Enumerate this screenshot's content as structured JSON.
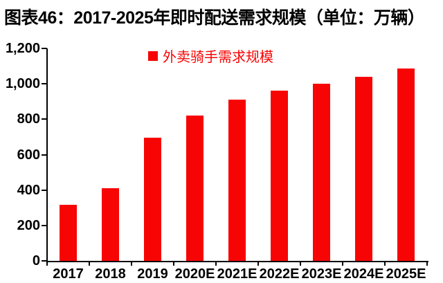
{
  "title": "图表46：2017-2025年即时配送需求规模（单位：万辆）",
  "legend": {
    "label": "外卖骑手需求规模"
  },
  "colors": {
    "bar": "#f70505",
    "legend_text": "#f70505",
    "axis": "#000000",
    "title_text": "#000000",
    "background": "#ffffff"
  },
  "chart_data": {
    "type": "bar",
    "title": "图表46：2017-2025年即时配送需求规模（单位：万辆）",
    "categories": [
      "2017",
      "2018",
      "2019",
      "2020E",
      "2021E",
      "2022E",
      "2023E",
      "2024E",
      "2025E"
    ],
    "series": [
      {
        "name": "外卖骑手需求规模",
        "values": [
          315,
          410,
          695,
          820,
          910,
          960,
          1000,
          1040,
          1085
        ]
      }
    ],
    "xlabel": "",
    "ylabel": "",
    "unit": "万辆",
    "ylim": [
      0,
      1200
    ],
    "ytick_step": 200,
    "ytick_labels": [
      "0",
      "200",
      "400",
      "600",
      "800",
      "1,000",
      "1,200"
    ],
    "grid": false,
    "legend_position": "top-center",
    "bar_color": "#f70505"
  }
}
